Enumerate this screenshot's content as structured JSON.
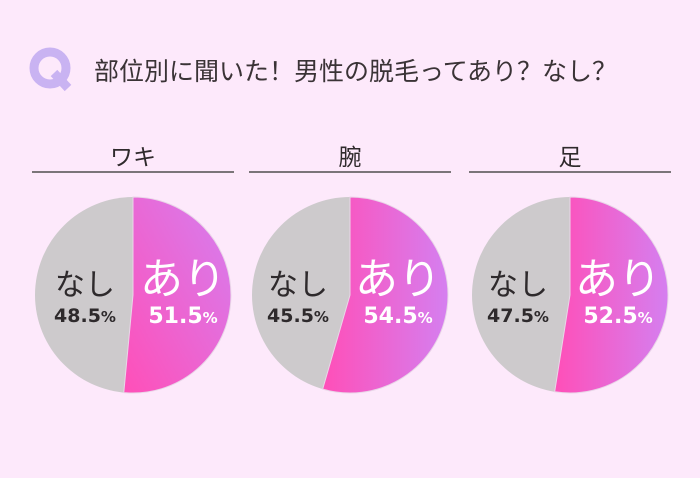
{
  "header": {
    "q_letter": "Q",
    "title": "部位別に聞いた！男性の脱毛ってあり？なし？"
  },
  "colors": {
    "background": "#fde9fb",
    "q_icon": "#c9b3f2",
    "nashi_slice": "#cdcacc",
    "ari_gradient_start": "#ff4fb8",
    "ari_gradient_end": "#d57ff0",
    "divider": "#7b7579"
  },
  "panels": [
    {
      "label": "ワキ",
      "nashi_word": "なし",
      "nashi_value": "48.5",
      "ari_word": "あり",
      "ari_value": "51.5",
      "pct": "%"
    },
    {
      "label": "腕",
      "nashi_word": "なし",
      "nashi_value": "45.5",
      "ari_word": "あり",
      "ari_value": "54.5",
      "pct": "%"
    },
    {
      "label": "足",
      "nashi_word": "なし",
      "nashi_value": "47.5",
      "ari_word": "あり",
      "ari_value": "52.5",
      "pct": "%"
    }
  ],
  "chart_data": [
    {
      "type": "pie",
      "title": "ワキ",
      "categories": [
        "あり",
        "なし"
      ],
      "values": [
        51.5,
        48.5
      ],
      "unit": "%"
    },
    {
      "type": "pie",
      "title": "腕",
      "categories": [
        "あり",
        "なし"
      ],
      "values": [
        54.5,
        45.5
      ],
      "unit": "%"
    },
    {
      "type": "pie",
      "title": "足",
      "categories": [
        "あり",
        "なし"
      ],
      "values": [
        52.5,
        47.5
      ],
      "unit": "%"
    }
  ]
}
